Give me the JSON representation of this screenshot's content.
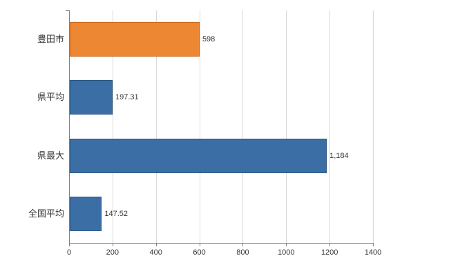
{
  "chart_data": {
    "type": "bar",
    "orientation": "horizontal",
    "title": "",
    "xlabel": "",
    "ylabel": "",
    "categories": [
      "豊田市",
      "県平均",
      "県最大",
      "全国平均"
    ],
    "values": [
      598,
      197.31,
      1184,
      147.52
    ],
    "value_labels": [
      "598",
      "197.31",
      "1,184",
      "147.52"
    ],
    "bar_colors": [
      "#ee8733",
      "#3a6ea5",
      "#3a6ea5",
      "#3a6ea5"
    ],
    "bar_border_colors": [
      "#c9691f",
      "#2c5782",
      "#2c5782",
      "#2c5782"
    ],
    "xlim": [
      0,
      1400
    ],
    "x_ticks": [
      0,
      200,
      400,
      600,
      800,
      1000,
      1200,
      1400
    ],
    "x_tick_labels": [
      "0",
      "200",
      "400",
      "600",
      "800",
      "1000",
      "1200",
      "1400"
    ],
    "grid": true,
    "legend": "none"
  },
  "colors": {
    "background": "#ffffff",
    "gridline": "#d9d9d9",
    "axis": "#808080",
    "text": "#333333"
  }
}
